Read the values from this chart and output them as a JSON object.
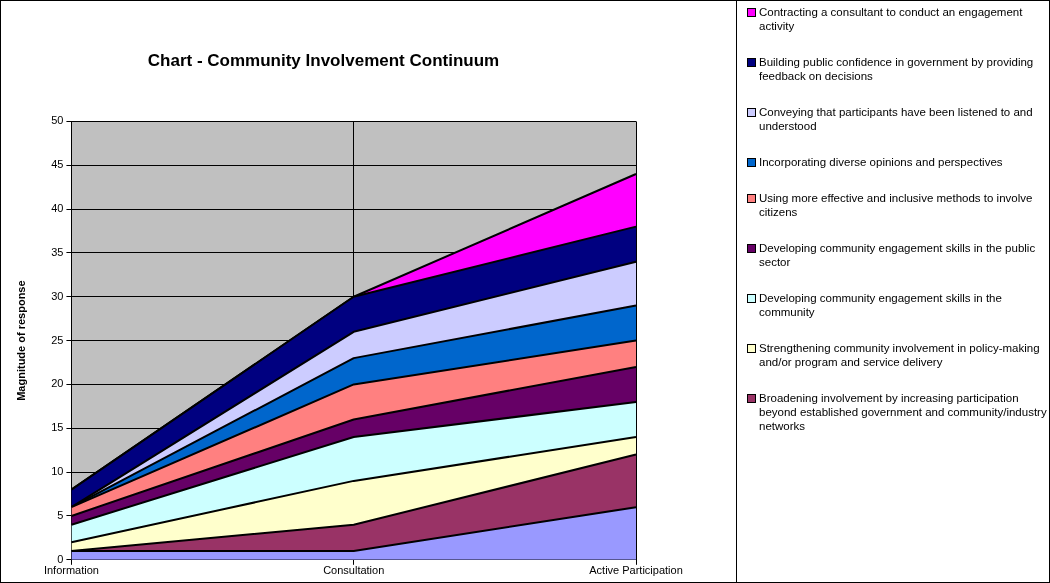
{
  "chart_data": {
    "type": "area",
    "title": "Chart - Community Involvement Continuum",
    "ylabel": "Magnitude of response",
    "categories": [
      "Information",
      "Consultation",
      "Active Participation"
    ],
    "stacked": true,
    "ylim": [
      0,
      50
    ],
    "yticks": [
      0,
      5,
      10,
      15,
      20,
      25,
      30,
      35,
      40,
      45,
      50
    ],
    "grid": true,
    "legend": "right",
    "series": [
      {
        "color": "#9999ff",
        "values": [
          1,
          1,
          6
        ]
      },
      {
        "name": "Broadening involvement by increasing participation beyond established government and community/industry networks",
        "color": "#993366",
        "values": [
          0,
          3,
          6
        ]
      },
      {
        "name": "Strengthening community involvement in policy-making and/or program and service delivery",
        "color": "#ffffcc",
        "values": [
          1,
          5,
          2
        ]
      },
      {
        "name": "Developing  community engagement skills in the community",
        "color": "#ccffff",
        "values": [
          2,
          5,
          4
        ]
      },
      {
        "name": "Developing community engagement skills in the public sector",
        "color": "#660066",
        "values": [
          1,
          2,
          4
        ]
      },
      {
        "name": "Using more effective and inclusive methods to involve citizens",
        "color": "#ff8080",
        "values": [
          1,
          4,
          3
        ]
      },
      {
        "name": "Incorporating diverse opinions and perspectives",
        "color": "#0066cc",
        "values": [
          0,
          3,
          4
        ]
      },
      {
        "name": "Conveying that participants have been listened to and understood",
        "color": "#ccccff",
        "values": [
          0,
          3,
          5
        ]
      },
      {
        "name": "Building public confidence in government by providing feedback on decisions",
        "color": "#000080",
        "values": [
          2,
          4,
          4
        ]
      },
      {
        "name": "Contracting a consultant  to conduct an engagement activity",
        "color": "#ff00ff",
        "values": [
          0,
          0,
          6
        ]
      }
    ]
  }
}
